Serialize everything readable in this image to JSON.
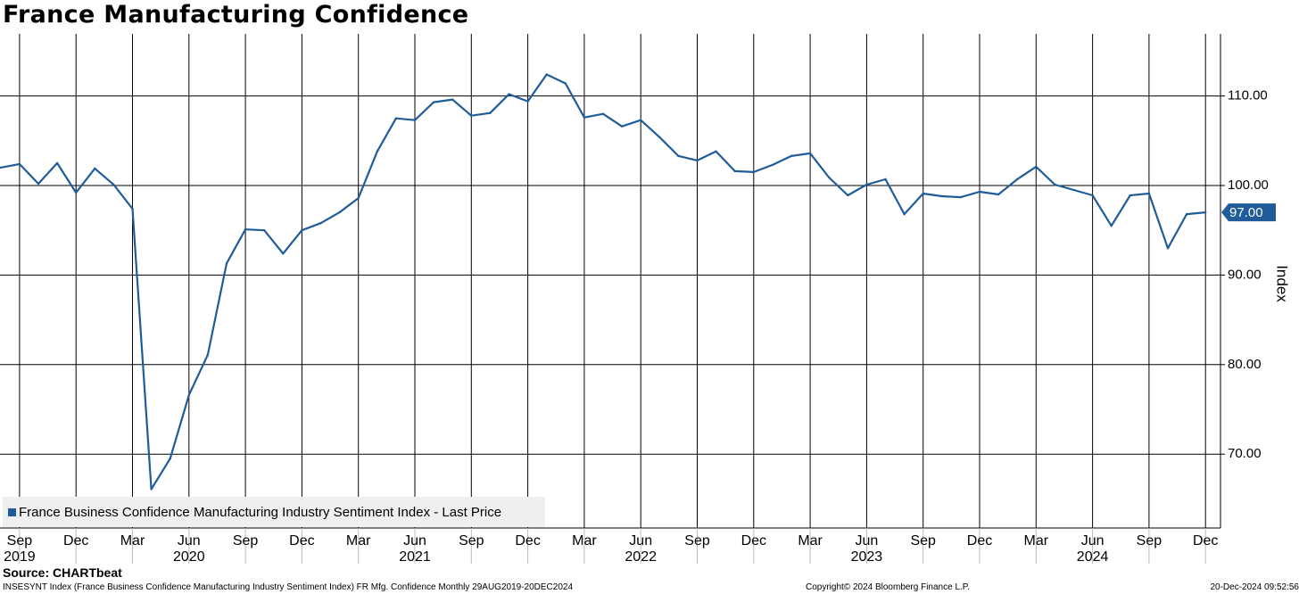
{
  "source": "Source: CHARTbeat",
  "footer": {
    "description": "INSESYNT Index (France Business Confidence Manufacturing Industry Sentiment Index) FR Mfg. Confidence  Monthly 29AUG2019-20DEC2024",
    "copyright": "Copyright© 2024 Bloomberg Finance L.P.",
    "timestamp": "20-Dec-2024 09:52:56"
  },
  "chart_data": {
    "type": "line",
    "title": "France Manufacturing Confidence",
    "ylabel": "Index",
    "ylim": [
      63,
      117
    ],
    "y_ticks": [
      70,
      80,
      90,
      100,
      110
    ],
    "y_tick_labels": [
      "70.00",
      "80.00",
      "90.00",
      "100.00",
      "110.00"
    ],
    "y_axis_position": "right",
    "grid": true,
    "legend_position": "bottom-left",
    "last_value_label": "97.00",
    "x_start": "2019-08",
    "x_tick_labels": [
      {
        "month": "Sep",
        "year": "2019",
        "date": "2019-09"
      },
      {
        "month": "Dec",
        "year": "",
        "date": "2019-12"
      },
      {
        "month": "Mar",
        "year": "",
        "date": "2020-03"
      },
      {
        "month": "Jun",
        "year": "2020",
        "date": "2020-06"
      },
      {
        "month": "Sep",
        "year": "",
        "date": "2020-09"
      },
      {
        "month": "Dec",
        "year": "",
        "date": "2020-12"
      },
      {
        "month": "Mar",
        "year": "",
        "date": "2021-03"
      },
      {
        "month": "Jun",
        "year": "2021",
        "date": "2021-06"
      },
      {
        "month": "Sep",
        "year": "",
        "date": "2021-09"
      },
      {
        "month": "Dec",
        "year": "",
        "date": "2021-12"
      },
      {
        "month": "Mar",
        "year": "",
        "date": "2022-03"
      },
      {
        "month": "Jun",
        "year": "2022",
        "date": "2022-06"
      },
      {
        "month": "Sep",
        "year": "",
        "date": "2022-09"
      },
      {
        "month": "Dec",
        "year": "",
        "date": "2022-12"
      },
      {
        "month": "Mar",
        "year": "",
        "date": "2023-03"
      },
      {
        "month": "Jun",
        "year": "2023",
        "date": "2023-06"
      },
      {
        "month": "Sep",
        "year": "",
        "date": "2023-09"
      },
      {
        "month": "Dec",
        "year": "",
        "date": "2023-12"
      },
      {
        "month": "Mar",
        "year": "",
        "date": "2024-03"
      },
      {
        "month": "Jun",
        "year": "2024",
        "date": "2024-06"
      },
      {
        "month": "Sep",
        "year": "",
        "date": "2024-09"
      },
      {
        "month": "Dec",
        "year": "",
        "date": "2024-12"
      }
    ],
    "series": [
      {
        "name": "France Business Confidence Manufacturing Industry Sentiment Index - Last Price",
        "color": "#1f5c99",
        "x": [
          "2019-08",
          "2019-09",
          "2019-10",
          "2019-11",
          "2019-12",
          "2020-01",
          "2020-02",
          "2020-03",
          "2020-04",
          "2020-05",
          "2020-06",
          "2020-07",
          "2020-08",
          "2020-09",
          "2020-10",
          "2020-11",
          "2020-12",
          "2021-01",
          "2021-02",
          "2021-03",
          "2021-04",
          "2021-05",
          "2021-06",
          "2021-07",
          "2021-08",
          "2021-09",
          "2021-10",
          "2021-11",
          "2021-12",
          "2022-01",
          "2022-02",
          "2022-03",
          "2022-04",
          "2022-05",
          "2022-06",
          "2022-07",
          "2022-08",
          "2022-09",
          "2022-10",
          "2022-11",
          "2022-12",
          "2023-01",
          "2023-02",
          "2023-03",
          "2023-04",
          "2023-05",
          "2023-06",
          "2023-07",
          "2023-08",
          "2023-09",
          "2023-10",
          "2023-11",
          "2023-12",
          "2024-01",
          "2024-02",
          "2024-03",
          "2024-04",
          "2024-05",
          "2024-06",
          "2024-07",
          "2024-08",
          "2024-09",
          "2024-10",
          "2024-11",
          "2024-12"
        ],
        "values": [
          102,
          102.4,
          100.2,
          102.5,
          99.2,
          101.9,
          100.1,
          97.4,
          66.1,
          69.5,
          76.6,
          81.1,
          91.3,
          95.1,
          95,
          92.4,
          95,
          95.8,
          97,
          98.6,
          103.8,
          107.5,
          107.3,
          109.3,
          109.6,
          107.8,
          108.1,
          110.2,
          109.4,
          112.4,
          111.4,
          107.6,
          108,
          106.6,
          107.3,
          105.4,
          103.3,
          102.8,
          103.8,
          101.6,
          101.5,
          102.3,
          103.3,
          103.6,
          100.9,
          98.9,
          100.1,
          100.7,
          96.8,
          99.1,
          98.8,
          98.7,
          99.3,
          99,
          100.7,
          102.1,
          100.1,
          99.5,
          98.9,
          95.5,
          98.9,
          99.1,
          93,
          96.8,
          97
        ]
      }
    ]
  }
}
